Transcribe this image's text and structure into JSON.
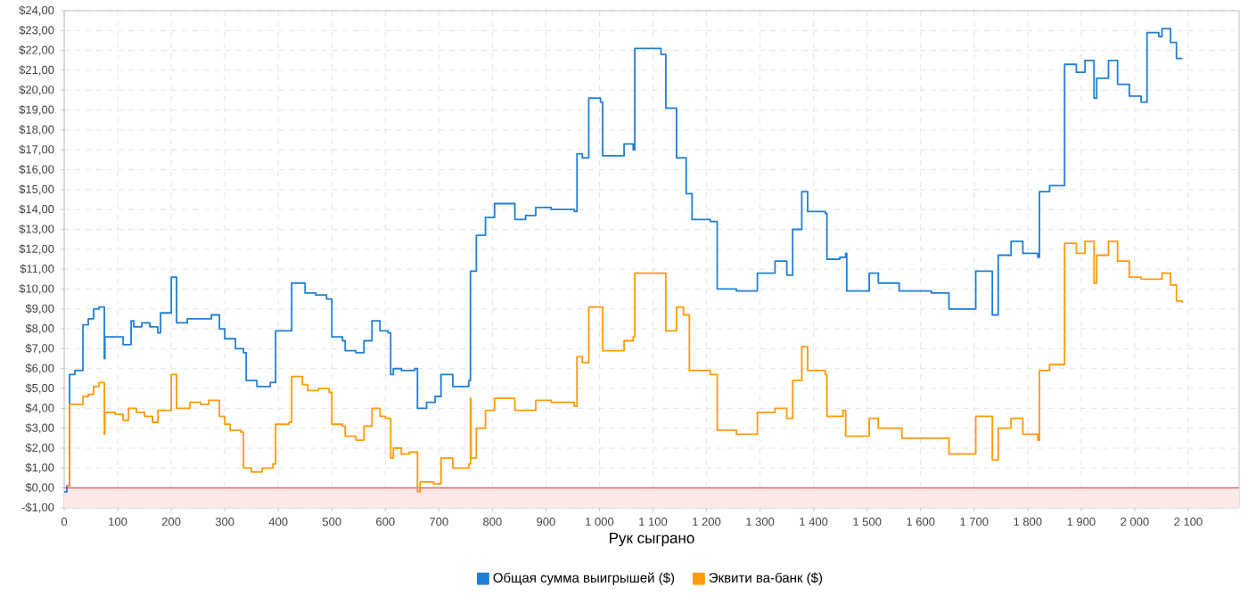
{
  "chart_data": {
    "type": "step",
    "xlabel": "Рук сыграно",
    "xlim": [
      0,
      2195
    ],
    "ylim": [
      -1,
      24
    ],
    "xticks": [
      0,
      100,
      200,
      300,
      400,
      500,
      600,
      700,
      800,
      900,
      {
        "value": 1000,
        "label": "1 000"
      },
      {
        "value": 1100,
        "label": "1 100"
      },
      {
        "value": 1200,
        "label": "1 200"
      },
      {
        "value": 1300,
        "label": "1 300"
      },
      {
        "value": 1400,
        "label": "1 400"
      },
      {
        "value": 1500,
        "label": "1 500"
      },
      {
        "value": 1600,
        "label": "1 600"
      },
      {
        "value": 1700,
        "label": "1 700"
      },
      {
        "value": 1800,
        "label": "1 800"
      },
      {
        "value": 1900,
        "label": "1 900"
      },
      {
        "value": 2000,
        "label": "2 000"
      },
      {
        "value": 2100,
        "label": "2 100"
      }
    ],
    "yticks": [
      {
        "value": -1,
        "label": "-$1,00"
      },
      {
        "value": 0,
        "label": "$0,00"
      },
      {
        "value": 1,
        "label": "$1,00"
      },
      {
        "value": 2,
        "label": "$2,00"
      },
      {
        "value": 3,
        "label": "$3,00"
      },
      {
        "value": 4,
        "label": "$4,00"
      },
      {
        "value": 5,
        "label": "$5,00"
      },
      {
        "value": 6,
        "label": "$6,00"
      },
      {
        "value": 7,
        "label": "$7,00"
      },
      {
        "value": 8,
        "label": "$8,00"
      },
      {
        "value": 9,
        "label": "$9,00"
      },
      {
        "value": 10,
        "label": "$10,00"
      },
      {
        "value": 11,
        "label": "$11,00"
      },
      {
        "value": 12,
        "label": "$12,00"
      },
      {
        "value": 13,
        "label": "$13,00"
      },
      {
        "value": 14,
        "label": "$14,00"
      },
      {
        "value": 15,
        "label": "$15,00"
      },
      {
        "value": 16,
        "label": "$16,00"
      },
      {
        "value": 17,
        "label": "$17,00"
      },
      {
        "value": 18,
        "label": "$18,00"
      },
      {
        "value": 19,
        "label": "$19,00"
      },
      {
        "value": 20,
        "label": "$20,00"
      },
      {
        "value": 21,
        "label": "$21,00"
      },
      {
        "value": 22,
        "label": "$22,00"
      },
      {
        "value": 23,
        "label": "$23,00"
      },
      {
        "value": 24,
        "label": "$24,00"
      }
    ],
    "grid": true,
    "legend": "bottom",
    "ref_lines": [
      {
        "axis": "y",
        "value": 0,
        "color": "#e08080"
      }
    ],
    "bands": [
      {
        "axis": "y",
        "from": -1,
        "to": 0,
        "color": "#fde8e8"
      }
    ],
    "series": [
      {
        "name": "Общая сумма выигрышей ($)",
        "color": "#1f7fd6",
        "x": [
          0,
          5,
          10,
          20,
          35,
          45,
          55,
          65,
          75,
          76,
          95,
          110,
          125,
          130,
          145,
          160,
          175,
          180,
          195,
          200,
          210,
          230,
          260,
          275,
          290,
          300,
          320,
          335,
          340,
          360,
          385,
          395,
          420,
          425,
          450,
          470,
          490,
          500,
          520,
          525,
          545,
          560,
          575,
          590,
          605,
          610,
          615,
          630,
          645,
          655,
          660,
          677,
          693,
          704,
          726,
          756,
          759,
          770,
          787,
          804,
          831,
          842,
          862,
          881,
          910,
          953,
          958,
          968,
          980,
          1002,
          1006,
          1046,
          1063,
          1066,
          1107,
          1115,
          1124,
          1144,
          1162,
          1173,
          1207,
          1220,
          1256,
          1295,
          1328,
          1350,
          1361,
          1378,
          1389,
          1422,
          1425,
          1449,
          1460,
          1462,
          1488,
          1504,
          1521,
          1560,
          1620,
          1653,
          1692,
          1703,
          1731,
          1734,
          1745,
          1769,
          1791,
          1819,
          1822,
          1841,
          1863,
          1869,
          1891,
          1907,
          1924,
          1929,
          1951,
          1968,
          1990,
          2012,
          2023,
          2045,
          2051,
          2067,
          2078,
          2089
        ],
        "values": [
          -0.2,
          0.1,
          5.7,
          5.9,
          8.2,
          8.5,
          9.0,
          9.1,
          6.5,
          7.6,
          7.6,
          7.2,
          8.4,
          8.1,
          8.3,
          8.1,
          7.8,
          8.8,
          8.8,
          10.6,
          8.3,
          8.5,
          8.5,
          8.7,
          8.0,
          7.5,
          7.0,
          6.8,
          5.4,
          5.1,
          5.3,
          7.9,
          7.9,
          10.3,
          9.8,
          9.7,
          9.5,
          7.6,
          7.4,
          6.9,
          6.8,
          7.4,
          8.4,
          7.9,
          7.8,
          5.7,
          6.0,
          5.9,
          5.9,
          6.0,
          4.0,
          4.3,
          4.6,
          5.7,
          5.1,
          5.4,
          10.9,
          12.7,
          13.6,
          14.3,
          14.3,
          13.5,
          13.7,
          14.1,
          14.0,
          13.9,
          16.8,
          16.6,
          19.6,
          19.4,
          16.7,
          17.3,
          17.0,
          22.1,
          22.1,
          21.8,
          19.1,
          16.6,
          14.8,
          13.5,
          13.4,
          10.0,
          9.9,
          10.8,
          11.4,
          10.7,
          13.0,
          14.9,
          13.9,
          13.8,
          11.5,
          11.6,
          11.8,
          9.9,
          9.9,
          10.8,
          10.3,
          9.9,
          9.8,
          9.0,
          9.0,
          10.9,
          10.9,
          8.7,
          11.7,
          12.4,
          11.8,
          11.6,
          14.9,
          15.2,
          15.2,
          21.3,
          20.9,
          21.5,
          19.6,
          20.6,
          21.5,
          20.3,
          19.7,
          19.4,
          22.9,
          22.7,
          23.1,
          22.4,
          21.6,
          21.6
        ]
      },
      {
        "name": "Эквити ва-банк ($)",
        "color": "#ff9a0a",
        "x": [
          5,
          10,
          25,
          35,
          45,
          55,
          65,
          75,
          76,
          95,
          110,
          120,
          135,
          150,
          165,
          175,
          190,
          200,
          210,
          225,
          235,
          255,
          270,
          285,
          290,
          300,
          310,
          330,
          335,
          350,
          370,
          390,
          395,
          420,
          425,
          445,
          455,
          475,
          495,
          500,
          520,
          525,
          545,
          560,
          575,
          590,
          600,
          610,
          615,
          630,
          645,
          655,
          660,
          665,
          690,
          704,
          726,
          756,
          759,
          760,
          770,
          787,
          804,
          831,
          842,
          881,
          910,
          953,
          958,
          968,
          980,
          1002,
          1006,
          1046,
          1063,
          1066,
          1107,
          1124,
          1144,
          1157,
          1168,
          1181,
          1207,
          1220,
          1256,
          1295,
          1328,
          1350,
          1361,
          1378,
          1389,
          1422,
          1425,
          1455,
          1460,
          1488,
          1504,
          1521,
          1565,
          1620,
          1653,
          1692,
          1703,
          1731,
          1734,
          1745,
          1769,
          1791,
          1819,
          1822,
          1841,
          1863,
          1869,
          1891,
          1907,
          1924,
          1929,
          1951,
          1968,
          1990,
          2012,
          2051,
          2067,
          2078,
          2089
        ],
        "values": [
          0.1,
          4.2,
          4.2,
          4.6,
          4.7,
          5.1,
          5.3,
          2.7,
          3.8,
          3.7,
          3.4,
          4.0,
          3.8,
          3.6,
          3.3,
          3.9,
          3.9,
          5.7,
          4.0,
          4.0,
          4.3,
          4.2,
          4.4,
          4.4,
          3.6,
          3.2,
          2.9,
          2.8,
          1.0,
          0.8,
          1.0,
          1.2,
          3.2,
          3.3,
          5.6,
          5.2,
          4.9,
          5.0,
          4.8,
          3.2,
          3.1,
          2.6,
          2.4,
          3.1,
          4.0,
          3.6,
          3.5,
          1.5,
          2.0,
          1.7,
          1.8,
          1.8,
          -0.2,
          0.3,
          0.2,
          1.5,
          1.0,
          1.2,
          4.5,
          1.5,
          3.0,
          3.9,
          4.5,
          4.5,
          3.9,
          4.4,
          4.3,
          4.1,
          6.6,
          6.3,
          9.1,
          9.1,
          6.9,
          7.4,
          7.6,
          10.8,
          10.8,
          7.9,
          9.1,
          8.7,
          5.9,
          5.9,
          5.7,
          2.9,
          2.7,
          3.8,
          4.0,
          3.5,
          5.4,
          7.1,
          5.9,
          5.7,
          3.6,
          3.9,
          2.6,
          2.6,
          3.5,
          3.0,
          2.5,
          2.5,
          1.7,
          1.7,
          3.6,
          3.6,
          1.4,
          3.0,
          3.5,
          2.7,
          2.4,
          5.9,
          6.2,
          6.2,
          12.3,
          11.8,
          12.4,
          10.3,
          11.7,
          12.4,
          11.4,
          10.6,
          10.5,
          10.8,
          10.2,
          9.4,
          9.3
        ]
      }
    ]
  }
}
